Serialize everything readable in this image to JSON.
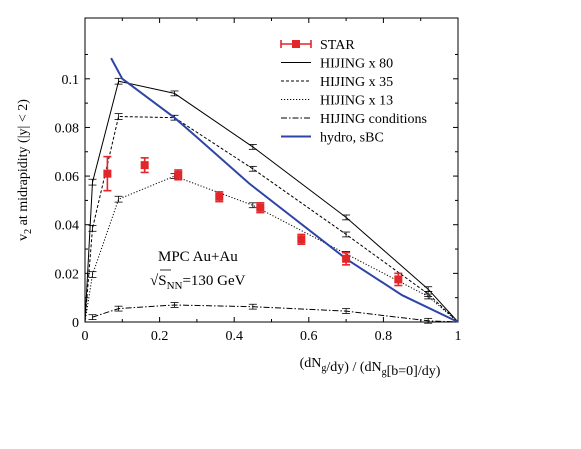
{
  "chart_data": {
    "type": "line",
    "xlabel": "(dN_g/dy) / (dN_g[b=0]/dy)",
    "ylabel": "v_2 at midrapidity (|y| < 2)",
    "xlim": [
      0,
      1
    ],
    "ylim": [
      0,
      0.125
    ],
    "xticks": [
      "0",
      "0.2",
      "0.4",
      "0.6",
      "0.8",
      "1"
    ],
    "yticks": [
      "0",
      "0.02",
      "0.04",
      "0.06",
      "0.08",
      "0.1"
    ],
    "annotation": {
      "line1": "MPC Au+Au",
      "line2": "√S_NN=130 GeV"
    },
    "legend_position": "top-right",
    "series": [
      {
        "name": "STAR",
        "color": "#e3262a",
        "style": "markers",
        "points": [
          {
            "x": 0.06,
            "y": 0.061,
            "err": 0.007
          },
          {
            "x": 0.16,
            "y": 0.0645,
            "err": 0.003
          },
          {
            "x": 0.25,
            "y": 0.0605,
            "err": 0.002
          },
          {
            "x": 0.36,
            "y": 0.0515,
            "err": 0.002
          },
          {
            "x": 0.47,
            "y": 0.047,
            "err": 0.002
          },
          {
            "x": 0.58,
            "y": 0.034,
            "err": 0.002
          },
          {
            "x": 0.7,
            "y": 0.026,
            "err": 0.0025
          },
          {
            "x": 0.84,
            "y": 0.0175,
            "err": 0.0025
          }
        ]
      },
      {
        "name": "HIJING x 80",
        "color": "#000000",
        "style": "solid",
        "points": [
          {
            "x": 0.0,
            "y": 0.0,
            "err": 0
          },
          {
            "x": 0.02,
            "y": 0.0575,
            "err": 0.0012
          },
          {
            "x": 0.09,
            "y": 0.099,
            "err": 0.0012
          },
          {
            "x": 0.24,
            "y": 0.094,
            "err": 0.001
          },
          {
            "x": 0.45,
            "y": 0.072,
            "err": 0.001
          },
          {
            "x": 0.7,
            "y": 0.043,
            "err": 0.001
          },
          {
            "x": 0.92,
            "y": 0.0135,
            "err": 0.001
          },
          {
            "x": 1.0,
            "y": 0.0,
            "err": 0
          }
        ]
      },
      {
        "name": "HIJING x 35",
        "color": "#000000",
        "style": "dashed",
        "points": [
          {
            "x": 0.0,
            "y": 0.0,
            "err": 0
          },
          {
            "x": 0.02,
            "y": 0.0385,
            "err": 0.0012
          },
          {
            "x": 0.09,
            "y": 0.0845,
            "err": 0.0012
          },
          {
            "x": 0.24,
            "y": 0.084,
            "err": 0.001
          },
          {
            "x": 0.45,
            "y": 0.063,
            "err": 0.001
          },
          {
            "x": 0.7,
            "y": 0.036,
            "err": 0.001
          },
          {
            "x": 0.92,
            "y": 0.0115,
            "err": 0.001
          },
          {
            "x": 1.0,
            "y": 0.0,
            "err": 0
          }
        ]
      },
      {
        "name": "HIJING x 13",
        "color": "#000000",
        "style": "dotted",
        "points": [
          {
            "x": 0.0,
            "y": 0.0,
            "err": 0
          },
          {
            "x": 0.02,
            "y": 0.0195,
            "err": 0.0012
          },
          {
            "x": 0.09,
            "y": 0.0505,
            "err": 0.0012
          },
          {
            "x": 0.24,
            "y": 0.06,
            "err": 0.001
          },
          {
            "x": 0.45,
            "y": 0.048,
            "err": 0.001
          },
          {
            "x": 0.7,
            "y": 0.028,
            "err": 0.001
          },
          {
            "x": 0.92,
            "y": 0.0105,
            "err": 0.001
          },
          {
            "x": 1.0,
            "y": 0.0,
            "err": 0
          }
        ]
      },
      {
        "name": "HIJING conditions",
        "color": "#000000",
        "style": "dashdot",
        "points": [
          {
            "x": 0.02,
            "y": 0.002,
            "err": 0.001
          },
          {
            "x": 0.09,
            "y": 0.0055,
            "err": 0.001
          },
          {
            "x": 0.24,
            "y": 0.007,
            "err": 0.001
          },
          {
            "x": 0.45,
            "y": 0.0063,
            "err": 0.001
          },
          {
            "x": 0.7,
            "y": 0.0045,
            "err": 0.001
          },
          {
            "x": 0.92,
            "y": 0.0005,
            "err": 0.001
          },
          {
            "x": 1.0,
            "y": 0.0,
            "err": 0
          }
        ]
      },
      {
        "name": "hydro, sBC",
        "color": "#2e45a8",
        "style": "thick",
        "points": [
          {
            "x": 0.07,
            "y": 0.1085
          },
          {
            "x": 0.1,
            "y": 0.1
          },
          {
            "x": 0.24,
            "y": 0.084
          },
          {
            "x": 0.3,
            "y": 0.076
          },
          {
            "x": 0.44,
            "y": 0.057
          },
          {
            "x": 0.7,
            "y": 0.026
          },
          {
            "x": 0.85,
            "y": 0.011
          },
          {
            "x": 1.0,
            "y": 0.0
          }
        ]
      }
    ]
  }
}
